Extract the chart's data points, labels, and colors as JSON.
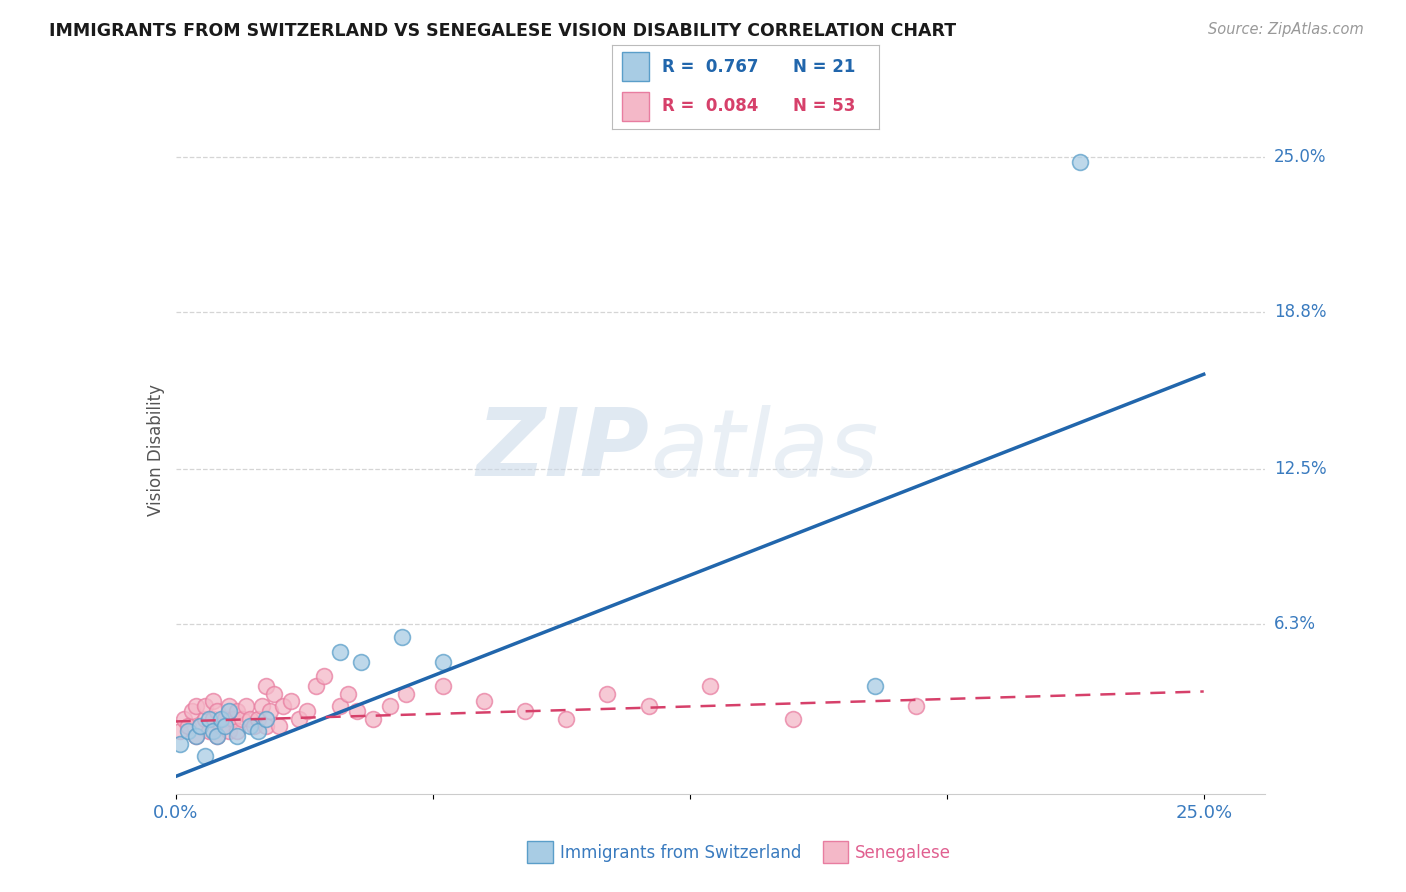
{
  "title": "IMMIGRANTS FROM SWITZERLAND VS SENEGALESE VISION DISABILITY CORRELATION CHART",
  "source": "Source: ZipAtlas.com",
  "ylabel": "Vision Disability",
  "xlim": [
    0.0,
    0.265
  ],
  "ylim": [
    -0.005,
    0.27
  ],
  "xtick_vals": [
    0.0,
    0.0625,
    0.125,
    0.1875,
    0.25
  ],
  "xtick_labels": [
    "0.0%",
    "",
    "",
    "",
    "25.0%"
  ],
  "ytick_labels_right": [
    "25.0%",
    "18.8%",
    "12.5%",
    "6.3%"
  ],
  "ytick_vals_right": [
    0.25,
    0.188,
    0.125,
    0.063
  ],
  "blue_fill_color": "#a8cce4",
  "pink_fill_color": "#f4b8c8",
  "blue_edge_color": "#5a9ec9",
  "pink_edge_color": "#e87da0",
  "blue_line_color": "#2166ac",
  "pink_line_color": "#d6406a",
  "right_label_color": "#3a7bbf",
  "bottom_label_color_blue": "#3a7bbf",
  "bottom_label_color_pink": "#e06090",
  "legend_R_blue": "R =  0.767",
  "legend_N_blue": "N = 21",
  "legend_R_pink": "R =  0.084",
  "legend_N_pink": "N = 53",
  "blue_scatter_x": [
    0.001,
    0.003,
    0.005,
    0.006,
    0.007,
    0.008,
    0.009,
    0.01,
    0.011,
    0.012,
    0.013,
    0.015,
    0.018,
    0.02,
    0.022,
    0.04,
    0.045,
    0.055,
    0.065,
    0.17,
    0.22
  ],
  "blue_scatter_y": [
    0.015,
    0.02,
    0.018,
    0.022,
    0.01,
    0.025,
    0.02,
    0.018,
    0.025,
    0.022,
    0.028,
    0.018,
    0.022,
    0.02,
    0.025,
    0.052,
    0.048,
    0.058,
    0.048,
    0.038,
    0.248
  ],
  "pink_scatter_x": [
    0.001,
    0.002,
    0.003,
    0.004,
    0.005,
    0.005,
    0.006,
    0.007,
    0.007,
    0.008,
    0.009,
    0.009,
    0.01,
    0.01,
    0.011,
    0.012,
    0.013,
    0.013,
    0.014,
    0.015,
    0.015,
    0.016,
    0.017,
    0.018,
    0.019,
    0.02,
    0.021,
    0.022,
    0.022,
    0.023,
    0.024,
    0.025,
    0.026,
    0.028,
    0.03,
    0.032,
    0.034,
    0.036,
    0.04,
    0.042,
    0.044,
    0.048,
    0.052,
    0.056,
    0.065,
    0.075,
    0.085,
    0.095,
    0.105,
    0.115,
    0.13,
    0.15,
    0.18
  ],
  "pink_scatter_y": [
    0.02,
    0.025,
    0.022,
    0.028,
    0.018,
    0.03,
    0.022,
    0.025,
    0.03,
    0.02,
    0.025,
    0.032,
    0.018,
    0.028,
    0.022,
    0.025,
    0.02,
    0.03,
    0.025,
    0.02,
    0.028,
    0.025,
    0.03,
    0.025,
    0.022,
    0.025,
    0.03,
    0.022,
    0.038,
    0.028,
    0.035,
    0.022,
    0.03,
    0.032,
    0.025,
    0.028,
    0.038,
    0.042,
    0.03,
    0.035,
    0.028,
    0.025,
    0.03,
    0.035,
    0.038,
    0.032,
    0.028,
    0.025,
    0.035,
    0.03,
    0.038,
    0.025,
    0.03
  ],
  "blue_line_x0": 0.0,
  "blue_line_x1": 0.25,
  "blue_line_y0": 0.002,
  "blue_line_y1": 0.163,
  "pink_line_x0": 0.0,
  "pink_line_x1": 0.25,
  "pink_line_y0": 0.024,
  "pink_line_y1": 0.036,
  "watermark_zip": "ZIP",
  "watermark_atlas": "atlas",
  "background_color": "#ffffff",
  "grid_color": "#d5d5d5"
}
